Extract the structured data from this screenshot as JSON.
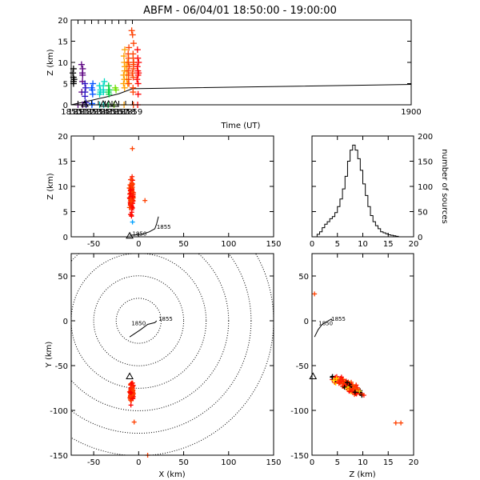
{
  "chart_data": [
    {
      "id": "time_height",
      "type": "scatter",
      "title": "ABFM - 06/04/01 18:50:00 - 19:00:00",
      "xlabel": "Time (UT)",
      "ylabel": "Z (km)",
      "xlim": [
        1850,
        1900
      ],
      "ylim": [
        0,
        20
      ],
      "xticks": [
        "1850",
        "1851",
        "1852",
        "1853",
        "1854",
        "1855",
        "1856",
        "1857",
        "1858",
        "1859",
        "1900"
      ],
      "yticks": [
        0,
        5,
        10,
        15,
        20
      ],
      "colormap_by_time": [
        "#000000",
        "#5a0080",
        "#2a10c0",
        "#0050ff",
        "#00a0ff",
        "#00d8c0",
        "#00d040",
        "#70e000",
        "#ffe000",
        "#ffa000",
        "#ff4000",
        "#ff0000"
      ],
      "groups": [
        {
          "t": 1850.3,
          "z": [
            8.5,
            7.5,
            6.5,
            6.0,
            5.5,
            5.0
          ]
        },
        {
          "t": 1851.6,
          "z": [
            9.5,
            8.5,
            7.5,
            7.0,
            5.5,
            3.0,
            0.0
          ]
        },
        {
          "t": 1852.1,
          "z": [
            5.0,
            4.0,
            3.0,
            2.0,
            0.5,
            0.0
          ]
        },
        {
          "t": 1853.1,
          "z": [
            5.0,
            4.0,
            3.5,
            2.5,
            0.3,
            0.0
          ]
        },
        {
          "t": 1854.2,
          "z": [
            4.5,
            3.5,
            3.0,
            2.5,
            0.0
          ]
        },
        {
          "t": 1854.8,
          "z": [
            5.5,
            4.5,
            3.5,
            3.0,
            0.0
          ]
        },
        {
          "t": 1855.5,
          "z": [
            4.5,
            3.5,
            3.0,
            2.5,
            0.0
          ]
        },
        {
          "t": 1856.5,
          "z": [
            4.0,
            3.5
          ]
        },
        {
          "t": 1857.8,
          "z": [
            13.0,
            11.5,
            10.0,
            9.0,
            8.0,
            7.0,
            6.0,
            5.0,
            4.0,
            0.0
          ]
        },
        {
          "t": 1858.2,
          "z": [
            10.0,
            9.0,
            8.0,
            7.0,
            6.0,
            5.0
          ]
        },
        {
          "t": 1858.5,
          "z": [
            13.5,
            12.0,
            11.0,
            10.0,
            9.0,
            8.0,
            7.0,
            6.0,
            5.0
          ]
        },
        {
          "t": 1859.1,
          "z": [
            16.5,
            14.5,
            12.0,
            11.0,
            10.0,
            9.5,
            8.5,
            7.5,
            6.5,
            4.0,
            3.0,
            0.0
          ]
        },
        {
          "t": 1859.8,
          "z": [
            13.0,
            11.0,
            10.0,
            9.0,
            8.0,
            7.5,
            7.0,
            6.0,
            5.0,
            2.5,
            0.0
          ]
        }
      ],
      "extra_points": [
        {
          "t": 1858.9,
          "z": 17.5
        },
        {
          "t": 1856.3,
          "z": 0.0
        },
        {
          "t": 1851.0,
          "z": 0.0
        }
      ],
      "triangles_t": [
        1852.0,
        1854.7,
        1855.5,
        1856.5
      ],
      "ground_line": {
        "t": [
          1850,
          1852.8,
          1855,
          1857,
          1859,
          1900
        ],
        "z": [
          0.0,
          1.0,
          1.8,
          2.6,
          3.8,
          4.8
        ]
      }
    },
    {
      "id": "x_height",
      "type": "scatter",
      "xlabel": "",
      "ylabel": "Z (km)",
      "xlim": [
        -75,
        150
      ],
      "ylim": [
        0,
        20
      ],
      "xticks": [
        -50,
        0,
        50,
        100,
        150
      ],
      "yticks": [
        0,
        5,
        10,
        15,
        20
      ],
      "sources_x_center": -8,
      "track": {
        "x": [
          -10,
          4,
          12,
          18,
          20,
          22
        ],
        "z": [
          0.3,
          0.5,
          1.0,
          1.6,
          2.6,
          4.0
        ]
      },
      "track_labels": [
        {
          "text": "1850",
          "x": -7,
          "z": 0.2
        },
        {
          "text": "1855",
          "x": 20,
          "z": 1.6
        }
      ]
    },
    {
      "id": "altitude_histogram",
      "type": "bar",
      "ylabel": "number of sources",
      "xlabel": "",
      "xlim": [
        0,
        20
      ],
      "ylim": [
        0,
        200
      ],
      "xticks": [
        0,
        5,
        10,
        15,
        20
      ],
      "yticks": [
        0,
        50,
        100,
        150,
        200
      ],
      "bin_edges_km": [
        1,
        1.5,
        2,
        2.5,
        3,
        3.5,
        4,
        4.5,
        5,
        5.5,
        6,
        6.5,
        7,
        7.5,
        8,
        8.5,
        9,
        9.5,
        10,
        10.5,
        11,
        11.5,
        12,
        12.5,
        13,
        13.5,
        14,
        14.5,
        15,
        15.5,
        16,
        16.5,
        17
      ],
      "counts": [
        5,
        10,
        18,
        25,
        30,
        36,
        40,
        48,
        60,
        75,
        95,
        120,
        150,
        172,
        182,
        172,
        155,
        132,
        105,
        82,
        60,
        42,
        30,
        22,
        16,
        10,
        8,
        6,
        4,
        3,
        2,
        1
      ]
    },
    {
      "id": "plan_view",
      "type": "scatter",
      "xlabel": "X (km)",
      "ylabel": "Y (km)",
      "xlim": [
        -75,
        150
      ],
      "ylim": [
        -150,
        75
      ],
      "xticks": [
        -50,
        0,
        50,
        100,
        150
      ],
      "yticks": [
        -150,
        -100,
        -50,
        0,
        50
      ],
      "range_rings_km": [
        25,
        50,
        75,
        100,
        125,
        150
      ],
      "sources_center": [
        -8,
        -78
      ],
      "extra_points": [
        {
          "x": -5,
          "y": -113
        },
        {
          "x": 10,
          "y": -150
        }
      ],
      "triangle": {
        "x": -10,
        "y": -62
      },
      "track": {
        "x": [
          -10,
          2,
          10,
          18,
          20
        ],
        "y": [
          -18,
          -10,
          -4,
          -2,
          0
        ]
      },
      "track_labels": [
        {
          "text": "1850",
          "x": -8,
          "y": -5
        },
        {
          "text": "1855",
          "x": 22,
          "y": 0
        }
      ]
    },
    {
      "id": "z_vs_y",
      "type": "scatter",
      "xlabel": "Z (km)",
      "ylabel": "",
      "xlim": [
        0,
        20
      ],
      "ylim": [
        -150,
        75
      ],
      "xticks": [
        0,
        5,
        10,
        15,
        20
      ],
      "yticks": [
        -150,
        -100,
        -50,
        0,
        50
      ],
      "extra_points": [
        {
          "z": 0.5,
          "y": 30
        },
        {
          "z": 17.5,
          "y": -114
        },
        {
          "z": 16.5,
          "y": -114
        }
      ],
      "triangle": {
        "z": 0.2,
        "y": -62
      },
      "track": {
        "z": [
          0.5,
          1.2,
          2.0,
          3.2,
          3.8,
          4.0
        ],
        "y": [
          -18,
          -10,
          -4,
          0,
          2,
          0
        ]
      },
      "track_labels": [
        {
          "text": "1850",
          "z": 1.3,
          "y": -5
        },
        {
          "text": "1855",
          "z": 3.8,
          "y": 0
        }
      ]
    }
  ]
}
